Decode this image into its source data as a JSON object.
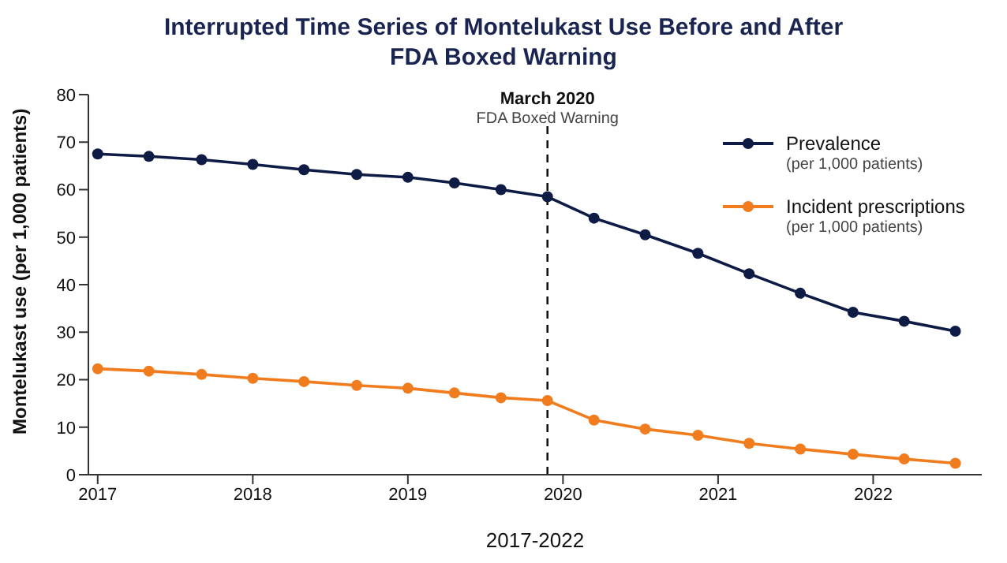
{
  "chart_data": {
    "type": "line",
    "title": "Interrupted Time Series of Montelukast Use Before and After\nFDA Boxed Warning",
    "xlabel": "2017-2022",
    "ylabel": "Montelukast use (per 1,000 patients)",
    "x": [
      2017,
      2017.33,
      2017.67,
      2018,
      2018.33,
      2018.67,
      2019,
      2019.3,
      2019.6,
      2019.9,
      2020.2,
      2020.53,
      2020.87,
      2021.2,
      2021.53,
      2021.87,
      2022.2,
      2022.53
    ],
    "series": [
      {
        "name": "Prevalence\n(per 1,000 patients)",
        "color": "#0d1b45",
        "values": [
          67.5,
          67,
          66.3,
          65.3,
          64.2,
          63.2,
          62.6,
          61.4,
          60,
          58.5,
          54,
          50.5,
          46.6,
          42.3,
          38.2,
          34.2,
          32.3,
          30.2
        ]
      },
      {
        "name": "Incident prescriptions\n(per 1,000 patients)",
        "color": "#f07c1e",
        "values": [
          22.3,
          21.8,
          21.1,
          20.3,
          19.6,
          18.8,
          18.2,
          17.2,
          16.2,
          15.6,
          11.5,
          9.6,
          8.3,
          6.6,
          5.4,
          4.3,
          3.3,
          2.4
        ]
      }
    ],
    "xlim": [
      2016.94,
      2022.7
    ],
    "xticks": [
      2017,
      2018,
      2019,
      2020,
      2021,
      2022
    ],
    "ylim": [
      0,
      80
    ],
    "yticks": [
      0,
      10,
      20,
      30,
      40,
      50,
      60,
      70,
      80
    ],
    "ref_lines": [
      {
        "axis": "x",
        "value": 2019.9,
        "label": "March 2020\nFDA Boxed Warning",
        "color": "#111111",
        "line_style": "dashed"
      }
    ],
    "grid": false,
    "legend": "top right",
    "marker": "circle",
    "line_style": "solid"
  }
}
